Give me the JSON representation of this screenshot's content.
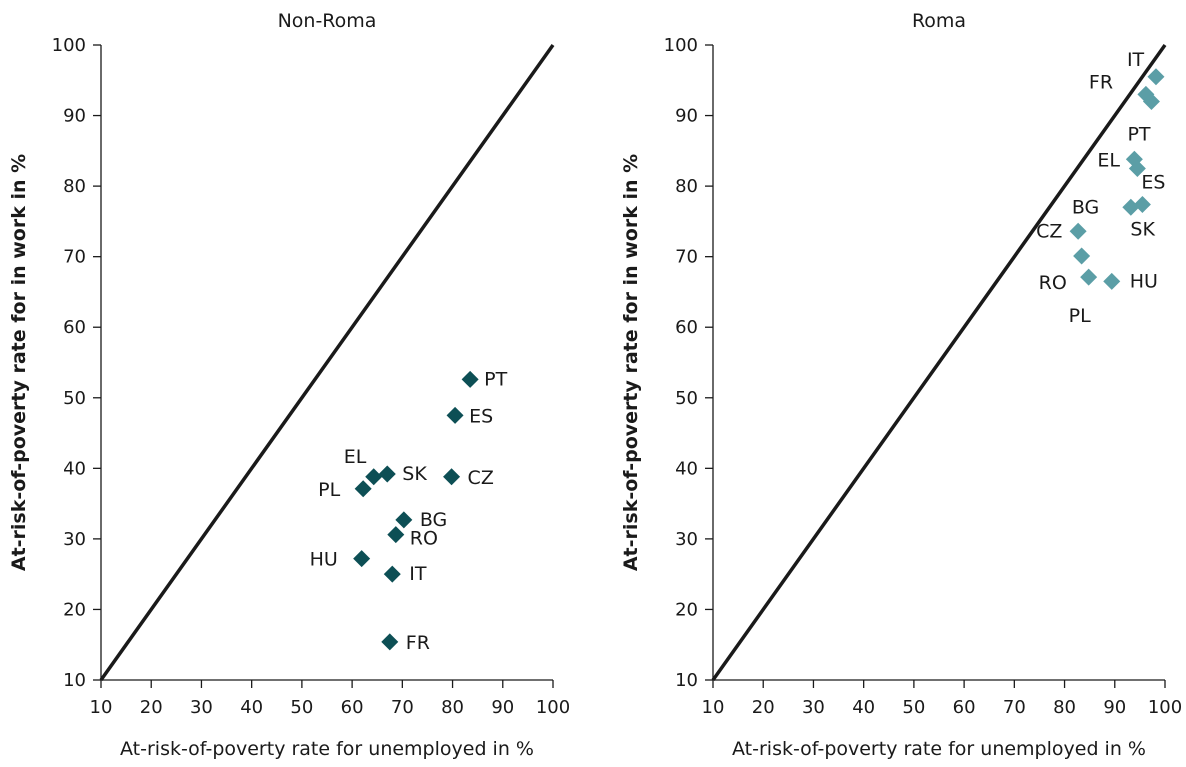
{
  "chart_data": [
    {
      "type": "scatter",
      "title": "Non-Roma",
      "xlabel": "At-risk-of-poverty rate for unemployed in %",
      "ylabel": "At-risk-of-poverty rate for in work in %",
      "xlim": [
        10,
        100
      ],
      "ylim": [
        10,
        100
      ],
      "xticks": [
        10,
        20,
        30,
        40,
        50,
        60,
        70,
        80,
        90,
        100
      ],
      "yticks": [
        10,
        20,
        30,
        40,
        50,
        60,
        70,
        80,
        90,
        100
      ],
      "reference_line": "y = x",
      "marker": "diamond",
      "color": "#0d4f55",
      "points": [
        {
          "label": "PT",
          "x": 83.5,
          "y": 52.6
        },
        {
          "label": "ES",
          "x": 80.5,
          "y": 47.5
        },
        {
          "label": "EL",
          "x": 64.3,
          "y": 38.8
        },
        {
          "label": "SK",
          "x": 67.0,
          "y": 39.2
        },
        {
          "label": "CZ",
          "x": 79.8,
          "y": 38.8
        },
        {
          "label": "PL",
          "x": 62.2,
          "y": 37.1
        },
        {
          "label": "BG",
          "x": 70.3,
          "y": 32.7
        },
        {
          "label": "RO",
          "x": 68.7,
          "y": 30.6
        },
        {
          "label": "HU",
          "x": 61.9,
          "y": 27.2
        },
        {
          "label": "IT",
          "x": 68.0,
          "y": 25.0
        },
        {
          "label": "FR",
          "x": 67.5,
          "y": 15.4
        }
      ]
    },
    {
      "type": "scatter",
      "title": "Roma",
      "xlabel": "At-risk-of-poverty rate for unemployed in %",
      "ylabel": "At-risk-of-poverty rate for in work in %",
      "xlim": [
        10,
        100
      ],
      "ylim": [
        10,
        100
      ],
      "xticks": [
        10,
        20,
        30,
        40,
        50,
        60,
        70,
        80,
        90,
        100
      ],
      "yticks": [
        10,
        20,
        30,
        40,
        50,
        60,
        70,
        80,
        90,
        100
      ],
      "reference_line": "y = x",
      "marker": "diamond",
      "color": "#5b9ea6",
      "points": [
        {
          "label": "IT",
          "x": 98.2,
          "y": 95.5
        },
        {
          "label": "FR",
          "x": 96.2,
          "y": 93.0
        },
        {
          "label": "PT",
          "x": 97.3,
          "y": 92.0
        },
        {
          "label": "EL",
          "x": 93.9,
          "y": 83.8
        },
        {
          "label": "ES",
          "x": 94.5,
          "y": 82.5
        },
        {
          "label": "BG",
          "x": 93.2,
          "y": 77.0
        },
        {
          "label": "SK",
          "x": 95.5,
          "y": 77.4
        },
        {
          "label": "CZ",
          "x": 82.7,
          "y": 73.6
        },
        {
          "label": "RO",
          "x": 83.4,
          "y": 70.1
        },
        {
          "label": "PL",
          "x": 84.8,
          "y": 67.1
        },
        {
          "label": "HU",
          "x": 89.4,
          "y": 66.5
        }
      ]
    }
  ]
}
